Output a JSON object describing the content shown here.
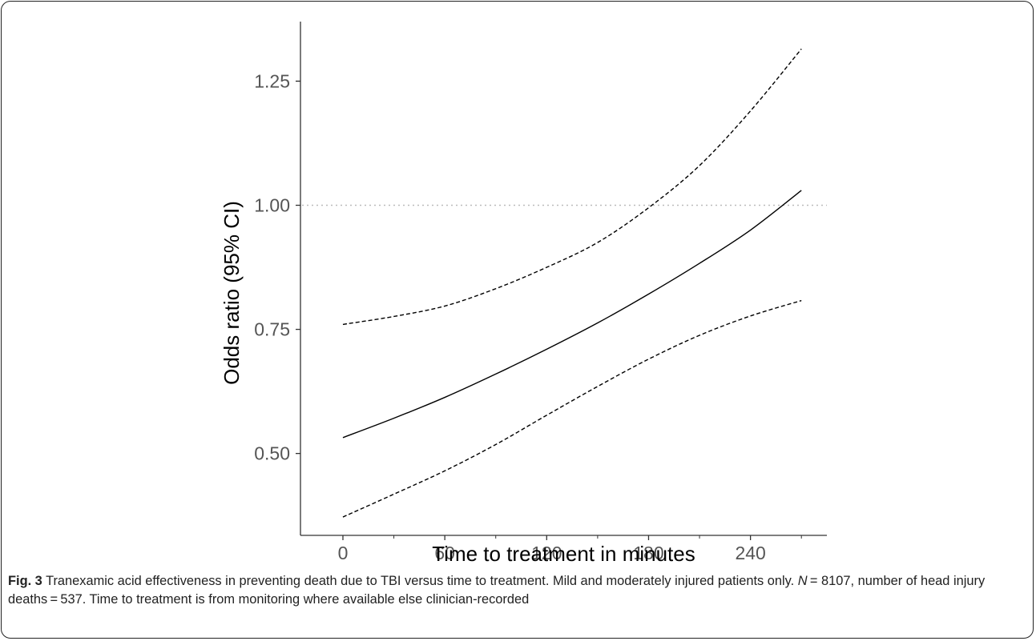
{
  "chart_data": {
    "type": "line",
    "xlabel": "Time to treatment in minutes",
    "ylabel": "Odds ratio (95% CI)",
    "xlim": [
      -25,
      285
    ],
    "ylim": [
      0.335,
      1.37
    ],
    "xticks": [
      0,
      60,
      120,
      180,
      240
    ],
    "xticks_minor": [
      30,
      90,
      150,
      210,
      270
    ],
    "yticks": [
      0.5,
      0.75,
      1.0,
      1.25
    ],
    "ytick_labels": [
      "0.50",
      "0.75",
      "1.00",
      "1.25"
    ],
    "reference_line": {
      "y": 1.0,
      "style": "dotted",
      "color": "#bbbbbb"
    },
    "grid": false,
    "series": [
      {
        "role": "estimate",
        "style": "solid",
        "color": "#000000",
        "x": [
          0,
          30,
          60,
          90,
          120,
          150,
          180,
          210,
          240,
          270
        ],
        "y": [
          0.532,
          0.571,
          0.613,
          0.66,
          0.71,
          0.763,
          0.821,
          0.883,
          0.95,
          1.03
        ]
      },
      {
        "role": "upper",
        "style": "dashed",
        "color": "#000000",
        "x": [
          0,
          30,
          60,
          90,
          120,
          150,
          180,
          210,
          240,
          270
        ],
        "y": [
          0.76,
          0.776,
          0.797,
          0.832,
          0.875,
          0.925,
          0.995,
          1.08,
          1.19,
          1.315
        ]
      },
      {
        "role": "lower",
        "style": "dashed",
        "color": "#000000",
        "x": [
          0,
          30,
          60,
          90,
          120,
          150,
          180,
          210,
          240,
          270
        ],
        "y": [
          0.372,
          0.418,
          0.465,
          0.518,
          0.577,
          0.635,
          0.69,
          0.738,
          0.777,
          0.808
        ]
      }
    ]
  },
  "caption": {
    "label": "Fig. 3",
    "text_1": " Tranexamic acid effectiveness in preventing death due to TBI versus time to treatment. Mild and moderately injured patients only. ",
    "n_symbol": "N",
    "text_2": " =\n8107, number of head injury deaths = 537. Time to treatment is from monitoring where available else clinician-recorded"
  }
}
